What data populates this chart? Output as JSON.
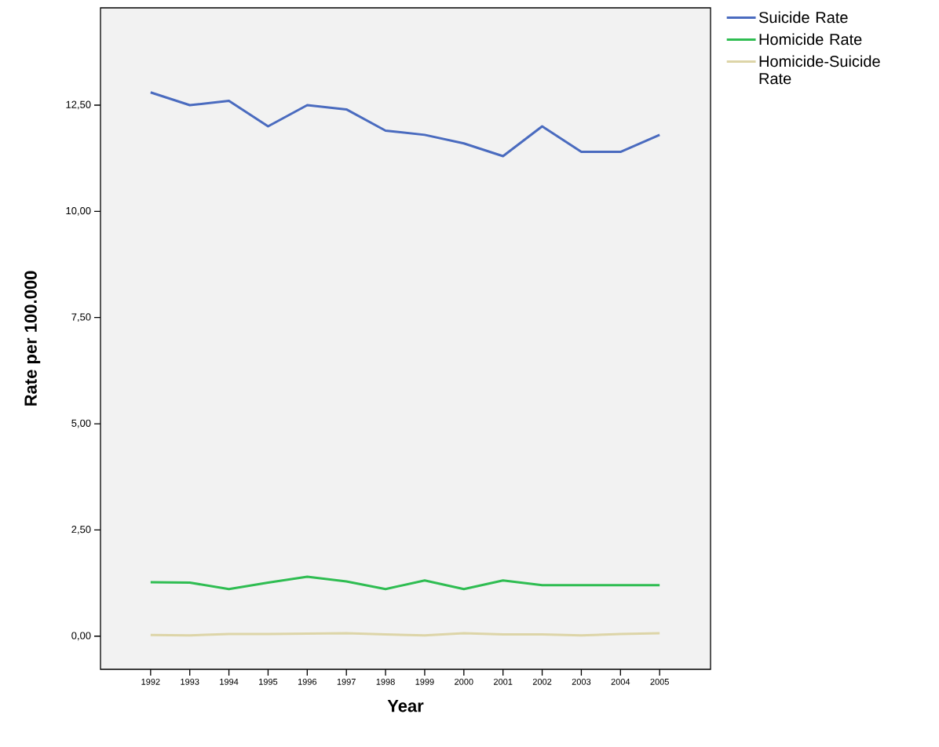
{
  "chart_data": {
    "type": "line",
    "xlabel": "Year",
    "ylabel": "Rate per 100.000",
    "categories": [
      "1992",
      "1993",
      "1994",
      "1995",
      "1996",
      "1997",
      "1998",
      "1999",
      "2000",
      "2001",
      "2002",
      "2003",
      "2004",
      "2005"
    ],
    "ylim": [
      -0.78,
      14.79
    ],
    "yticks": [
      {
        "value": 0,
        "label": "0,00"
      },
      {
        "value": 2.5,
        "label": "2,50"
      },
      {
        "value": 5,
        "label": "5,00"
      },
      {
        "value": 7.5,
        "label": "7,50"
      },
      {
        "value": 10,
        "label": "10,00"
      },
      {
        "value": 12.5,
        "label": "12,50"
      }
    ],
    "grid": false,
    "legend": "top right",
    "line_style": "solid",
    "marker": "none",
    "series": [
      {
        "name": "Suicide Rate",
        "color": "#4a6bbf",
        "values": [
          12.8,
          12.5,
          12.6,
          12.0,
          12.5,
          12.4,
          11.9,
          11.8,
          11.6,
          11.3,
          12.0,
          11.4,
          11.4,
          11.8
        ]
      },
      {
        "name": "Homicide Rate",
        "color": "#2fbd52",
        "values": [
          1.27,
          1.26,
          1.11,
          1.26,
          1.4,
          1.29,
          1.11,
          1.31,
          1.11,
          1.31,
          1.2,
          1.2,
          1.2,
          1.2
        ]
      },
      {
        "name": "Homicide-Suicide Rate",
        "color": "#ddd5a8",
        "values": [
          0.03,
          0.02,
          0.05,
          0.05,
          0.06,
          0.07,
          0.04,
          0.02,
          0.07,
          0.04,
          0.04,
          0.02,
          0.05,
          0.07
        ]
      }
    ]
  }
}
